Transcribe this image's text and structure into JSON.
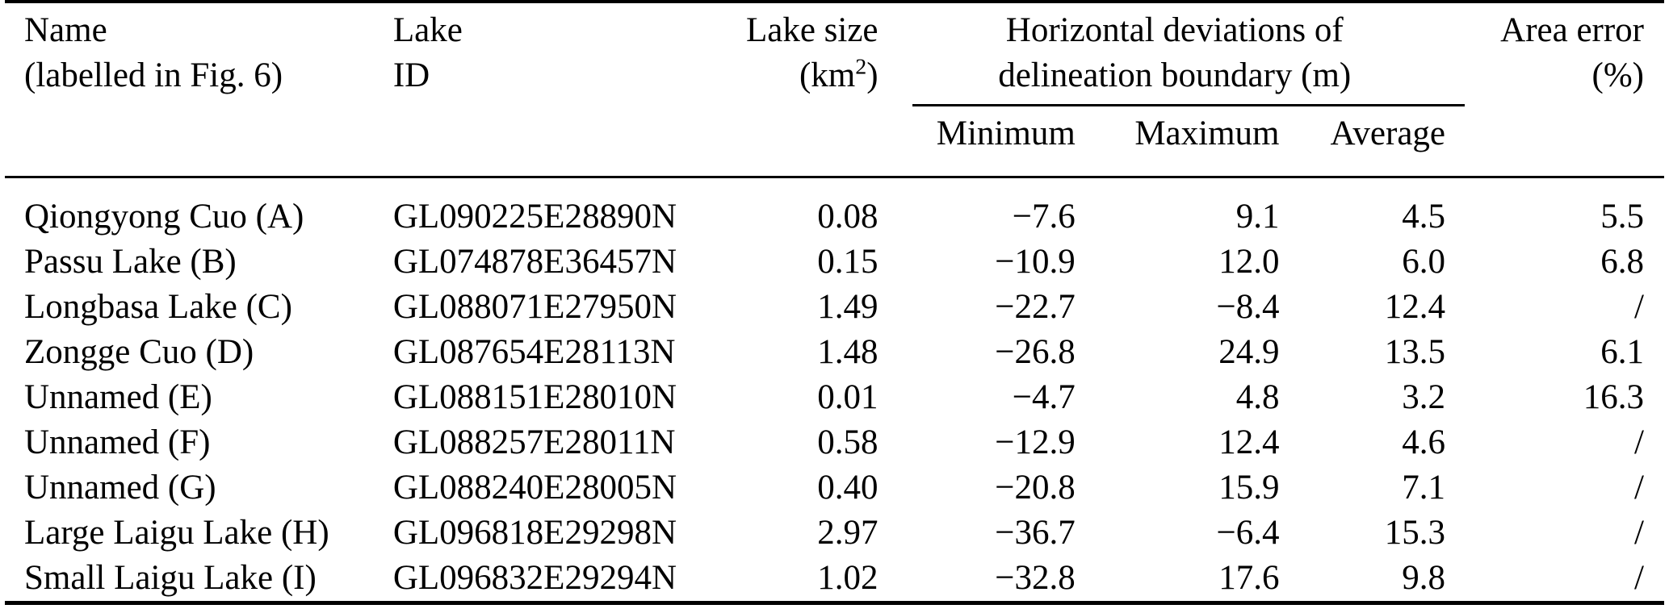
{
  "header": {
    "name_line1": "Name",
    "name_line2": "(labelled in Fig. 6)",
    "id_line1": "Lake",
    "id_line2": "ID",
    "size_line1": "Lake size",
    "size_line2_pre": "(km",
    "size_line2_sup": "2",
    "size_line2_post": ")",
    "group_line1": "Horizontal deviations of",
    "group_line2": "delineation boundary (m)",
    "sub_minimum": "Minimum",
    "sub_maximum": "Maximum",
    "sub_average": "Average",
    "error_line1": "Area error",
    "error_line2": "(%)"
  },
  "rows": [
    {
      "name": "Qiongyong Cuo (A)",
      "id": "GL090225E28890N",
      "size": "0.08",
      "min": "−7.6",
      "max": "9.1",
      "avg": "4.5",
      "err": "5.5"
    },
    {
      "name": "Passu Lake (B)",
      "id": "GL074878E36457N",
      "size": "0.15",
      "min": "−10.9",
      "max": "12.0",
      "avg": "6.0",
      "err": "6.8"
    },
    {
      "name": "Longbasa Lake (C)",
      "id": "GL088071E27950N",
      "size": "1.49",
      "min": "−22.7",
      "max": "−8.4",
      "avg": "12.4",
      "err": "/"
    },
    {
      "name": "Zongge Cuo (D)",
      "id": "GL087654E28113N",
      "size": "1.48",
      "min": "−26.8",
      "max": "24.9",
      "avg": "13.5",
      "err": "6.1"
    },
    {
      "name": "Unnamed (E)",
      "id": "GL088151E28010N",
      "size": "0.01",
      "min": "−4.7",
      "max": "4.8",
      "avg": "3.2",
      "err": "16.3"
    },
    {
      "name": "Unnamed (F)",
      "id": "GL088257E28011N",
      "size": "0.58",
      "min": "−12.9",
      "max": "12.4",
      "avg": "4.6",
      "err": "/"
    },
    {
      "name": "Unnamed (G)",
      "id": "GL088240E28005N",
      "size": "0.40",
      "min": "−20.8",
      "max": "15.9",
      "avg": "7.1",
      "err": "/"
    },
    {
      "name": "Large Laigu Lake (H)",
      "id": "GL096818E29298N",
      "size": "2.97",
      "min": "−36.7",
      "max": "−6.4",
      "avg": "15.3",
      "err": "/"
    },
    {
      "name": "Small Laigu Lake (I)",
      "id": "GL096832E29294N",
      "size": "1.02",
      "min": "−32.8",
      "max": "17.6",
      "avg": "9.8",
      "err": "/"
    }
  ]
}
